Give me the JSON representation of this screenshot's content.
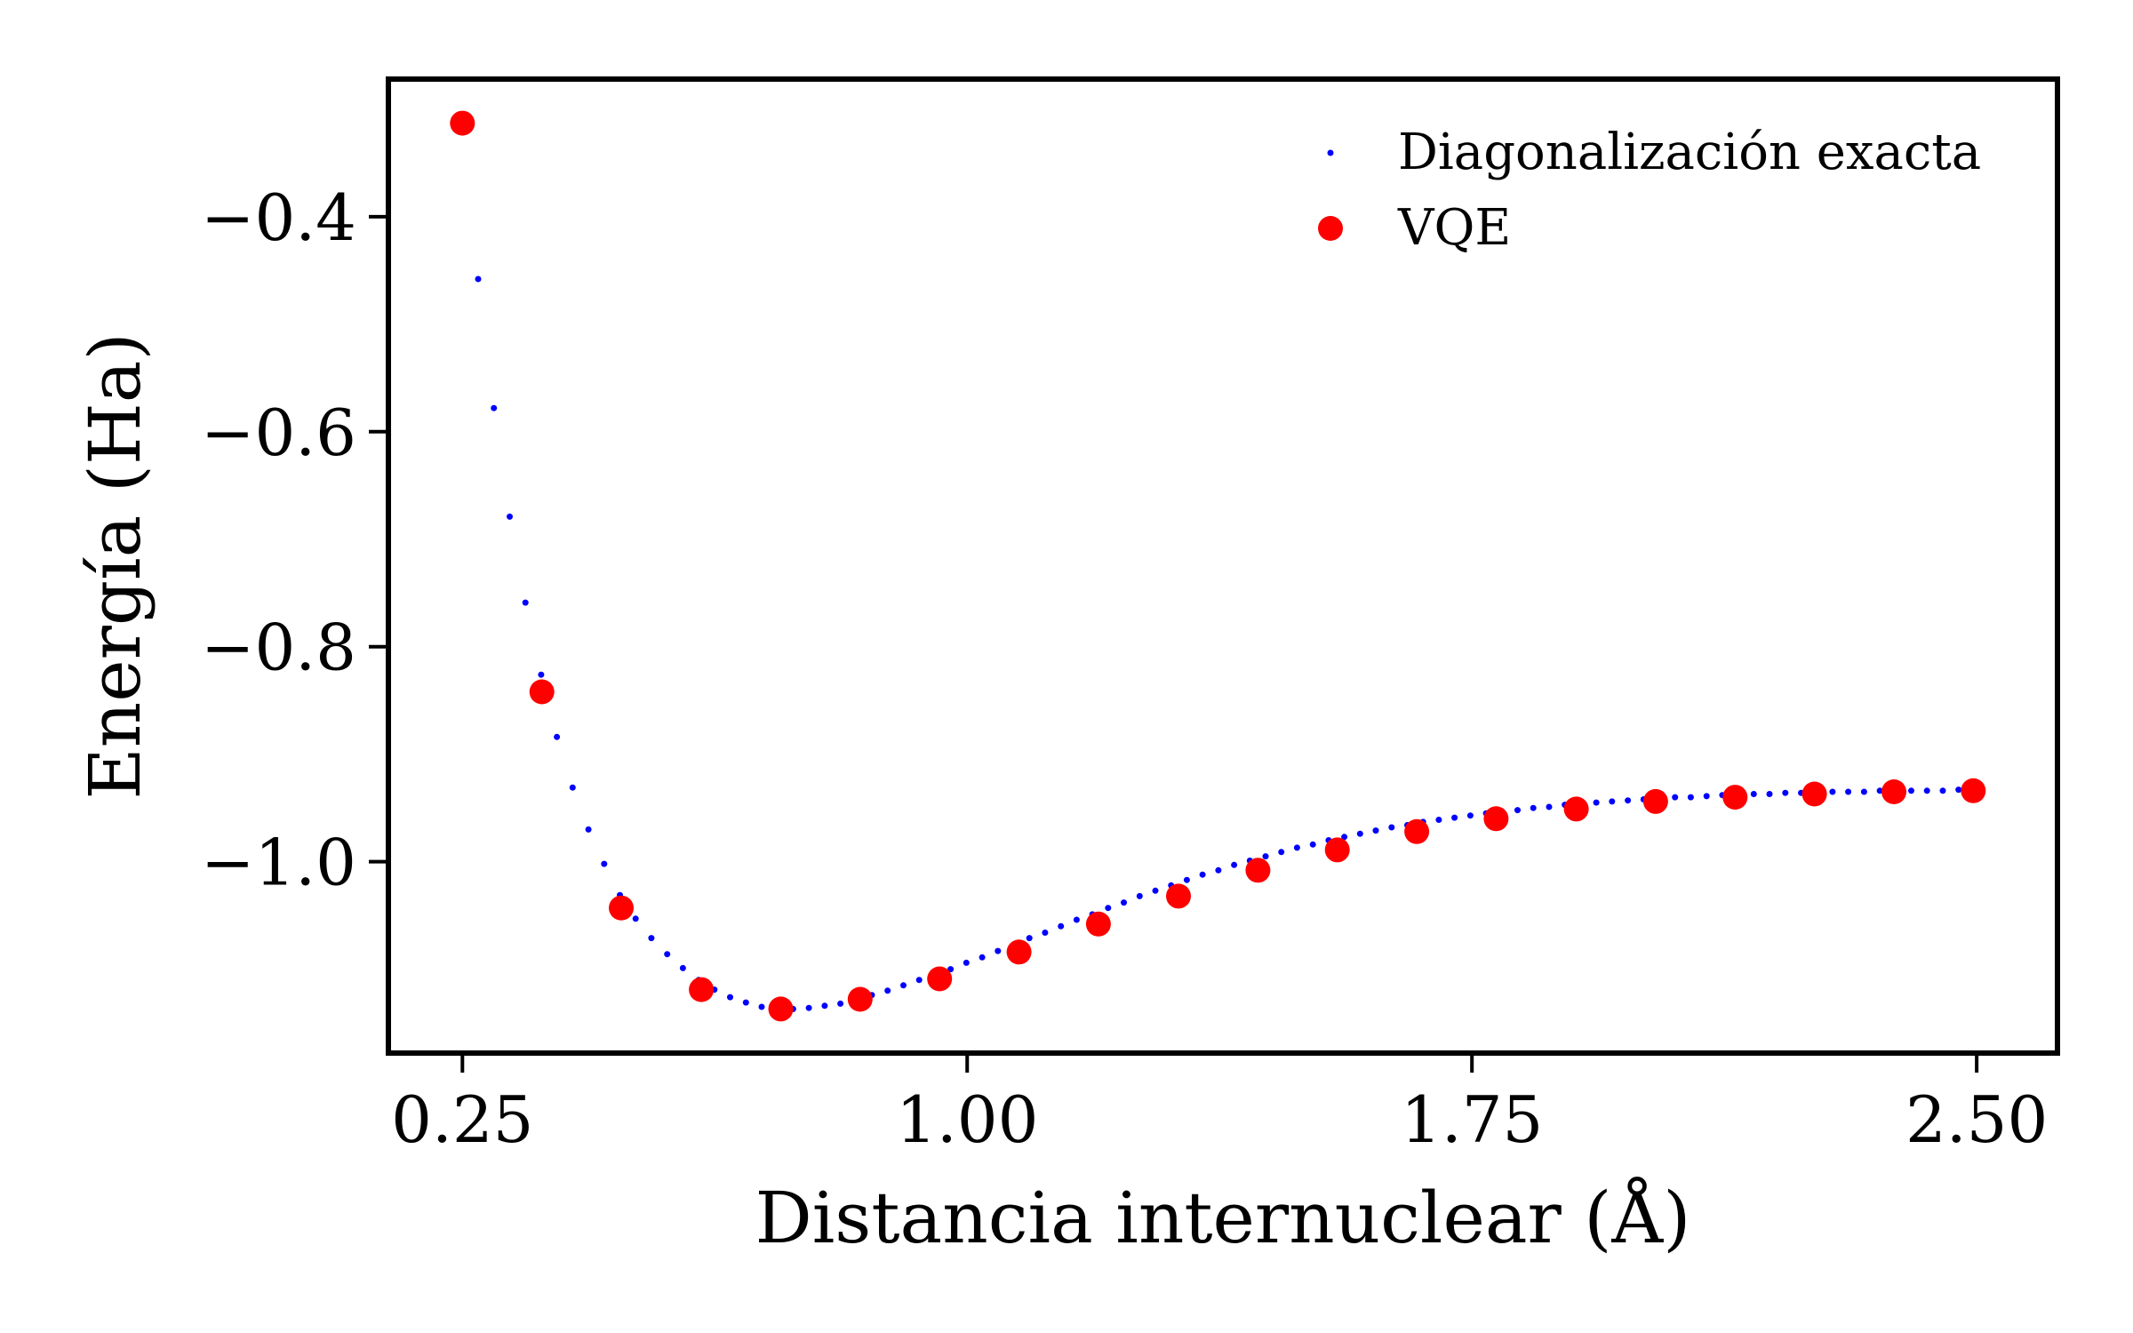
{
  "chart_data": {
    "type": "scatter",
    "title": "",
    "xlabel": "Distancia internuclear (Å)",
    "ylabel": "Energía (Ha)",
    "xlim": [
      0.14,
      2.62
    ],
    "ylim": [
      -1.178,
      -0.272
    ],
    "xticks": [
      {
        "value": 0.25,
        "label": "0.25"
      },
      {
        "value": 1.0,
        "label": "1.00"
      },
      {
        "value": 1.75,
        "label": "1.75"
      },
      {
        "value": 2.5,
        "label": "2.50"
      }
    ],
    "yticks": [
      {
        "value": -0.4,
        "label": "−0.4"
      },
      {
        "value": -0.6,
        "label": "−0.6"
      },
      {
        "value": -0.8,
        "label": "−0.8"
      },
      {
        "value": -1.0,
        "label": "−1.0"
      }
    ],
    "grid": false,
    "legend_position": "top-right",
    "series": [
      {
        "name": "Diagonalización exacta",
        "color": "#0000ff",
        "marker": "dot",
        "x": [
          0.25,
          0.2734,
          0.2968,
          0.3202,
          0.3436,
          0.367,
          0.3904,
          0.4138,
          0.4372,
          0.4606,
          0.484,
          0.5074,
          0.5308,
          0.5542,
          0.5776,
          0.601,
          0.6244,
          0.6478,
          0.6712,
          0.6946,
          0.718,
          0.7414,
          0.7648,
          0.7882,
          0.8116,
          0.835,
          0.8584,
          0.8818,
          0.9052,
          0.9286,
          0.952,
          0.9754,
          0.9988,
          1.0222,
          1.0456,
          1.069,
          1.0924,
          1.1158,
          1.1392,
          1.1626,
          1.186,
          1.2094,
          1.2328,
          1.2562,
          1.2796,
          1.303,
          1.3264,
          1.3498,
          1.3732,
          1.3966,
          1.42,
          1.4434,
          1.4668,
          1.4902,
          1.5136,
          1.537,
          1.5604,
          1.5838,
          1.6072,
          1.6306,
          1.654,
          1.6774,
          1.7008,
          1.7242,
          1.7476,
          1.771,
          1.7944,
          1.8178,
          1.8412,
          1.8646,
          1.888,
          1.9114,
          1.9348,
          1.9582,
          1.9816,
          2.005,
          2.0284,
          2.0518,
          2.0752,
          2.0986,
          2.122,
          2.1454,
          2.1688,
          2.1922,
          2.2156,
          2.239,
          2.2624,
          2.2858,
          2.3092,
          2.3326,
          2.356,
          2.3794,
          2.4028,
          2.4262,
          2.4496,
          2.473,
          2.4964
        ],
        "y": [
          -0.313,
          -0.458,
          -0.578,
          -0.679,
          -0.759,
          -0.826,
          -0.884,
          -0.931,
          -0.97,
          -1.002,
          -1.031,
          -1.053,
          -1.071,
          -1.086,
          -1.099,
          -1.11,
          -1.119,
          -1.126,
          -1.131,
          -1.135,
          -1.137,
          -1.137,
          -1.136,
          -1.134,
          -1.132,
          -1.128,
          -1.124,
          -1.12,
          -1.115,
          -1.11,
          -1.105,
          -1.1,
          -1.094,
          -1.089,
          -1.083,
          -1.077,
          -1.071,
          -1.066,
          -1.06,
          -1.054,
          -1.049,
          -1.043,
          -1.038,
          -1.032,
          -1.027,
          -1.022,
          -1.017,
          -1.012,
          -1.008,
          -1.003,
          -0.999,
          -0.995,
          -0.991,
          -0.987,
          -0.984,
          -0.98,
          -0.977,
          -0.974,
          -0.971,
          -0.968,
          -0.966,
          -0.963,
          -0.961,
          -0.959,
          -0.957,
          -0.955,
          -0.953,
          -0.952,
          -0.95,
          -0.949,
          -0.947,
          -0.946,
          -0.945,
          -0.944,
          -0.943,
          -0.942,
          -0.941,
          -0.94,
          -0.94,
          -0.939,
          -0.938,
          -0.938,
          -0.937,
          -0.937,
          -0.936,
          -0.936,
          -0.936,
          -0.935,
          -0.935,
          -0.935,
          -0.934,
          -0.934,
          -0.934,
          -0.934,
          -0.934,
          -0.933,
          -0.933
        ]
      },
      {
        "name": "VQE",
        "color": "#ff0000",
        "marker": "circle",
        "x": [
          0.25,
          0.368,
          0.486,
          0.605,
          0.723,
          0.841,
          0.959,
          1.077,
          1.195,
          1.314,
          1.432,
          1.55,
          1.668,
          1.786,
          1.905,
          2.023,
          2.141,
          2.259,
          2.377,
          2.495
        ],
        "y": [
          -0.313,
          -0.842,
          -1.043,
          -1.119,
          -1.137,
          -1.128,
          -1.109,
          -1.084,
          -1.058,
          -1.032,
          -1.008,
          -0.989,
          -0.972,
          -0.96,
          -0.951,
          -0.944,
          -0.94,
          -0.937,
          -0.935,
          -0.934
        ]
      }
    ]
  }
}
